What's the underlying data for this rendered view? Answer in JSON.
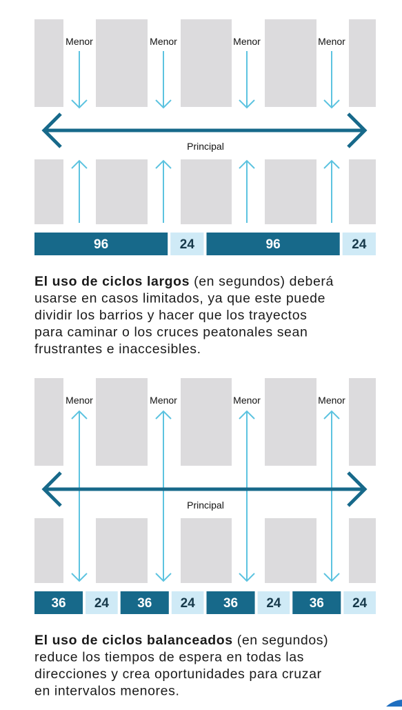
{
  "panels": [
    {
      "menor_labels": [
        "Menor",
        "Menor",
        "Menor",
        "Menor"
      ],
      "principal": "Principal",
      "cycles": [
        96,
        24,
        96,
        24
      ],
      "caption": {
        "lead": "El uso de ciclos largos",
        "first_line_rest": "  (en segundos) deberá",
        "lines": [
          "usarse en casos limitados, ya que este puede",
          "dividir los barrios y hacer que los trayectos",
          "para caminar o los cruces peatonales sean",
          "frustrantes e inaccesibles."
        ]
      }
    },
    {
      "menor_labels": [
        "Menor",
        "Menor",
        "Menor",
        "Menor"
      ],
      "principal": "Principal",
      "cycles": [
        36,
        24,
        36,
        24,
        36,
        24,
        36,
        24
      ],
      "caption": {
        "lead": "El uso de ciclos balanceados",
        "first_line_rest": " (en segundos)",
        "lines": [
          "reduce los tiempos de espera en todas las",
          "direcciones y crea oportunidades para cruzar",
          "en intervalos menores."
        ]
      }
    }
  ]
}
